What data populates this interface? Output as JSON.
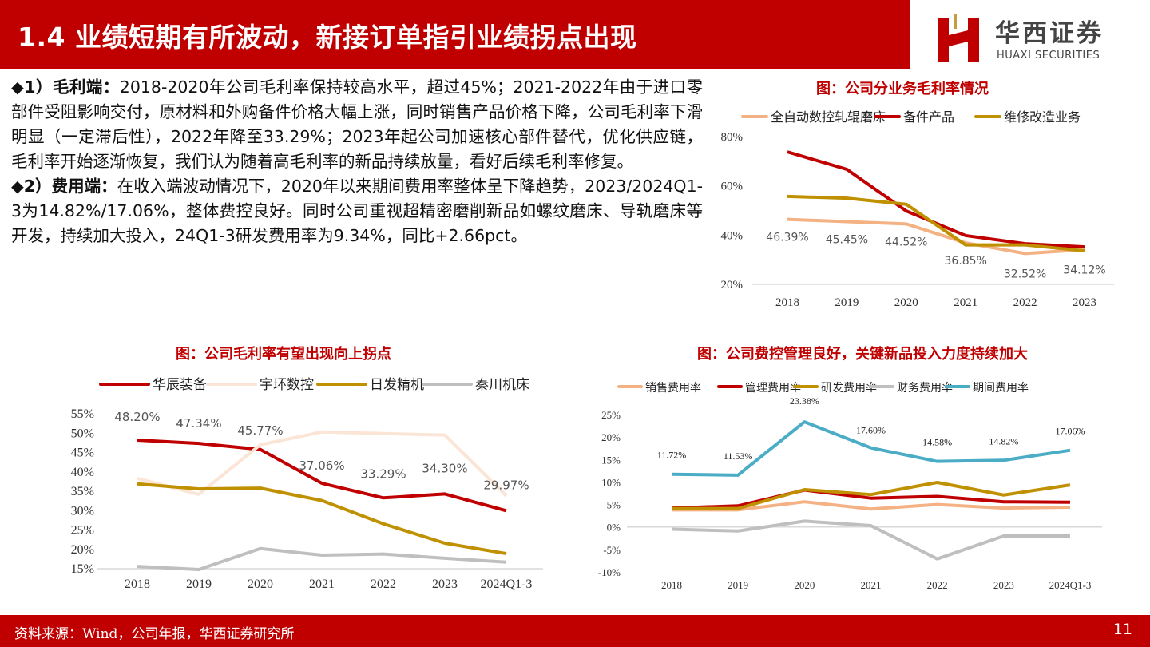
{
  "header": {
    "title": "1.4 业绩短期有所波动，新接订单指引业绩拐点出现"
  },
  "logo": {
    "cn": "华西证券",
    "en": "HUAXI SECURITIES"
  },
  "body": {
    "p1_label": "◆1）毛利端：",
    "p1_text": "2018-2020年公司毛利率保持较高水平，超过45%；2021-2022年由于进口零部件受阻影响交付，原材料和外购备件价格大幅上涨，同时销售产品价格下降，公司毛利率下滑明显（一定滞后性），2022年降至33.29%；2023年起公司加速核心部件替代，优化供应链，毛利率开始逐渐恢复，我们认为随着高毛利率的新品持续放量，看好后续毛利率修复。",
    "p2_label": "◆2）费用端：",
    "p2_text": "在收入端波动情况下，2020年以来期间费用率整体呈下降趋势，2023/2024Q1-3为14.82%/17.06%，整体费控良好。同时公司重视超精密磨削新品如螺纹磨床、导轨磨床等开发，持续加大投入，24Q1-3研发费用率为9.34%，同比+2.66pct。"
  },
  "footer": {
    "source": "资料来源：Wind，公司年报，华西证券研究所",
    "page": "11"
  },
  "chart_data": [
    {
      "type": "line",
      "title": "图：公司分业务毛利率情况",
      "categories": [
        "2018",
        "2019",
        "2020",
        "2021",
        "2022",
        "2023"
      ],
      "ylim": [
        20,
        80
      ],
      "yticks": [
        "20%",
        "40%",
        "60%",
        "80%"
      ],
      "yticks_values": [
        20,
        40,
        60,
        80
      ],
      "legend": "top",
      "series": [
        {
          "name": "全自动数控轧辊磨床",
          "color": "#F4B183",
          "values": [
            46.39,
            45.45,
            44.52,
            36.85,
            32.52,
            34.12
          ],
          "labels": [
            "46.39%",
            "45.45%",
            "44.52%",
            "36.85%",
            "32.52%",
            "34.12%"
          ]
        },
        {
          "name": "备件产品",
          "color": "#C00000",
          "values": [
            73.8,
            66.7,
            49.8,
            39.8,
            36.5,
            35.2
          ]
        },
        {
          "name": "维修改造业务",
          "color": "#BF9000",
          "values": [
            55.7,
            55.0,
            52.5,
            36.0,
            36.0,
            33.6
          ]
        }
      ]
    },
    {
      "type": "line",
      "title": "图：公司毛利率有望出现向上拐点",
      "categories": [
        "2018",
        "2019",
        "2020",
        "2021",
        "2022",
        "2023",
        "2024Q1-3"
      ],
      "ylim": [
        15,
        55
      ],
      "yticks": [
        "15%",
        "20%",
        "25%",
        "30%",
        "35%",
        "40%",
        "45%",
        "50%",
        "55%"
      ],
      "yticks_values": [
        15,
        20,
        25,
        30,
        35,
        40,
        45,
        50,
        55
      ],
      "legend": "top",
      "series": [
        {
          "name": "华辰装备",
          "color": "#C00000",
          "values": [
            48.2,
            47.34,
            45.77,
            37.06,
            33.29,
            34.3,
            29.97
          ],
          "labels": [
            "48.20%",
            "47.34%",
            "45.77%",
            "37.06%",
            "33.29%",
            "34.30%",
            "29.97%"
          ]
        },
        {
          "name": "宇环数控",
          "color": "#FBE5D6",
          "values": [
            38.3,
            34.2,
            47.0,
            50.3,
            49.9,
            49.5,
            33.8
          ]
        },
        {
          "name": "日发精机",
          "color": "#BF9000",
          "values": [
            36.9,
            35.6,
            35.8,
            32.6,
            26.6,
            21.6,
            18.9
          ]
        },
        {
          "name": "秦川机床",
          "color": "#BFBFBF",
          "values": [
            15.6,
            14.8,
            20.2,
            18.5,
            18.8,
            17.7,
            16.7
          ]
        }
      ]
    },
    {
      "type": "line",
      "title": "图：公司费控管理良好，关键新品投入力度持续加大",
      "categories": [
        "2018",
        "2019",
        "2020",
        "2021",
        "2022",
        "2023",
        "2024Q1-3"
      ],
      "ylim": [
        -10,
        25
      ],
      "yticks": [
        "-10%",
        "-5%",
        "0%",
        "5%",
        "10%",
        "15%",
        "20%",
        "25%"
      ],
      "yticks_values": [
        -10,
        -5,
        0,
        5,
        10,
        15,
        20,
        25
      ],
      "legend": "top",
      "series": [
        {
          "name": "销售费用率",
          "color": "#F4B183",
          "values": [
            3.8,
            3.8,
            5.6,
            4.0,
            5.0,
            4.2,
            4.4
          ]
        },
        {
          "name": "管理费用率",
          "color": "#C00000",
          "values": [
            4.2,
            4.7,
            8.2,
            6.4,
            6.8,
            5.6,
            5.5
          ]
        },
        {
          "name": "研发费用率",
          "color": "#BF9000",
          "values": [
            4.1,
            4.1,
            8.3,
            7.2,
            9.9,
            7.1,
            9.34
          ]
        },
        {
          "name": "财务费用率",
          "color": "#BFBFBF",
          "values": [
            -0.5,
            -0.9,
            1.3,
            0.3,
            -7.1,
            -2.0,
            -2.0
          ]
        },
        {
          "name": "期间费用率",
          "color": "#4BACC6",
          "values": [
            11.72,
            11.53,
            23.38,
            17.6,
            14.58,
            14.82,
            17.06
          ],
          "labels": [
            "11.72%",
            "11.53%",
            "23.38%",
            "17.60%",
            "14.58%",
            "14.82%",
            "17.06%"
          ]
        }
      ]
    }
  ]
}
